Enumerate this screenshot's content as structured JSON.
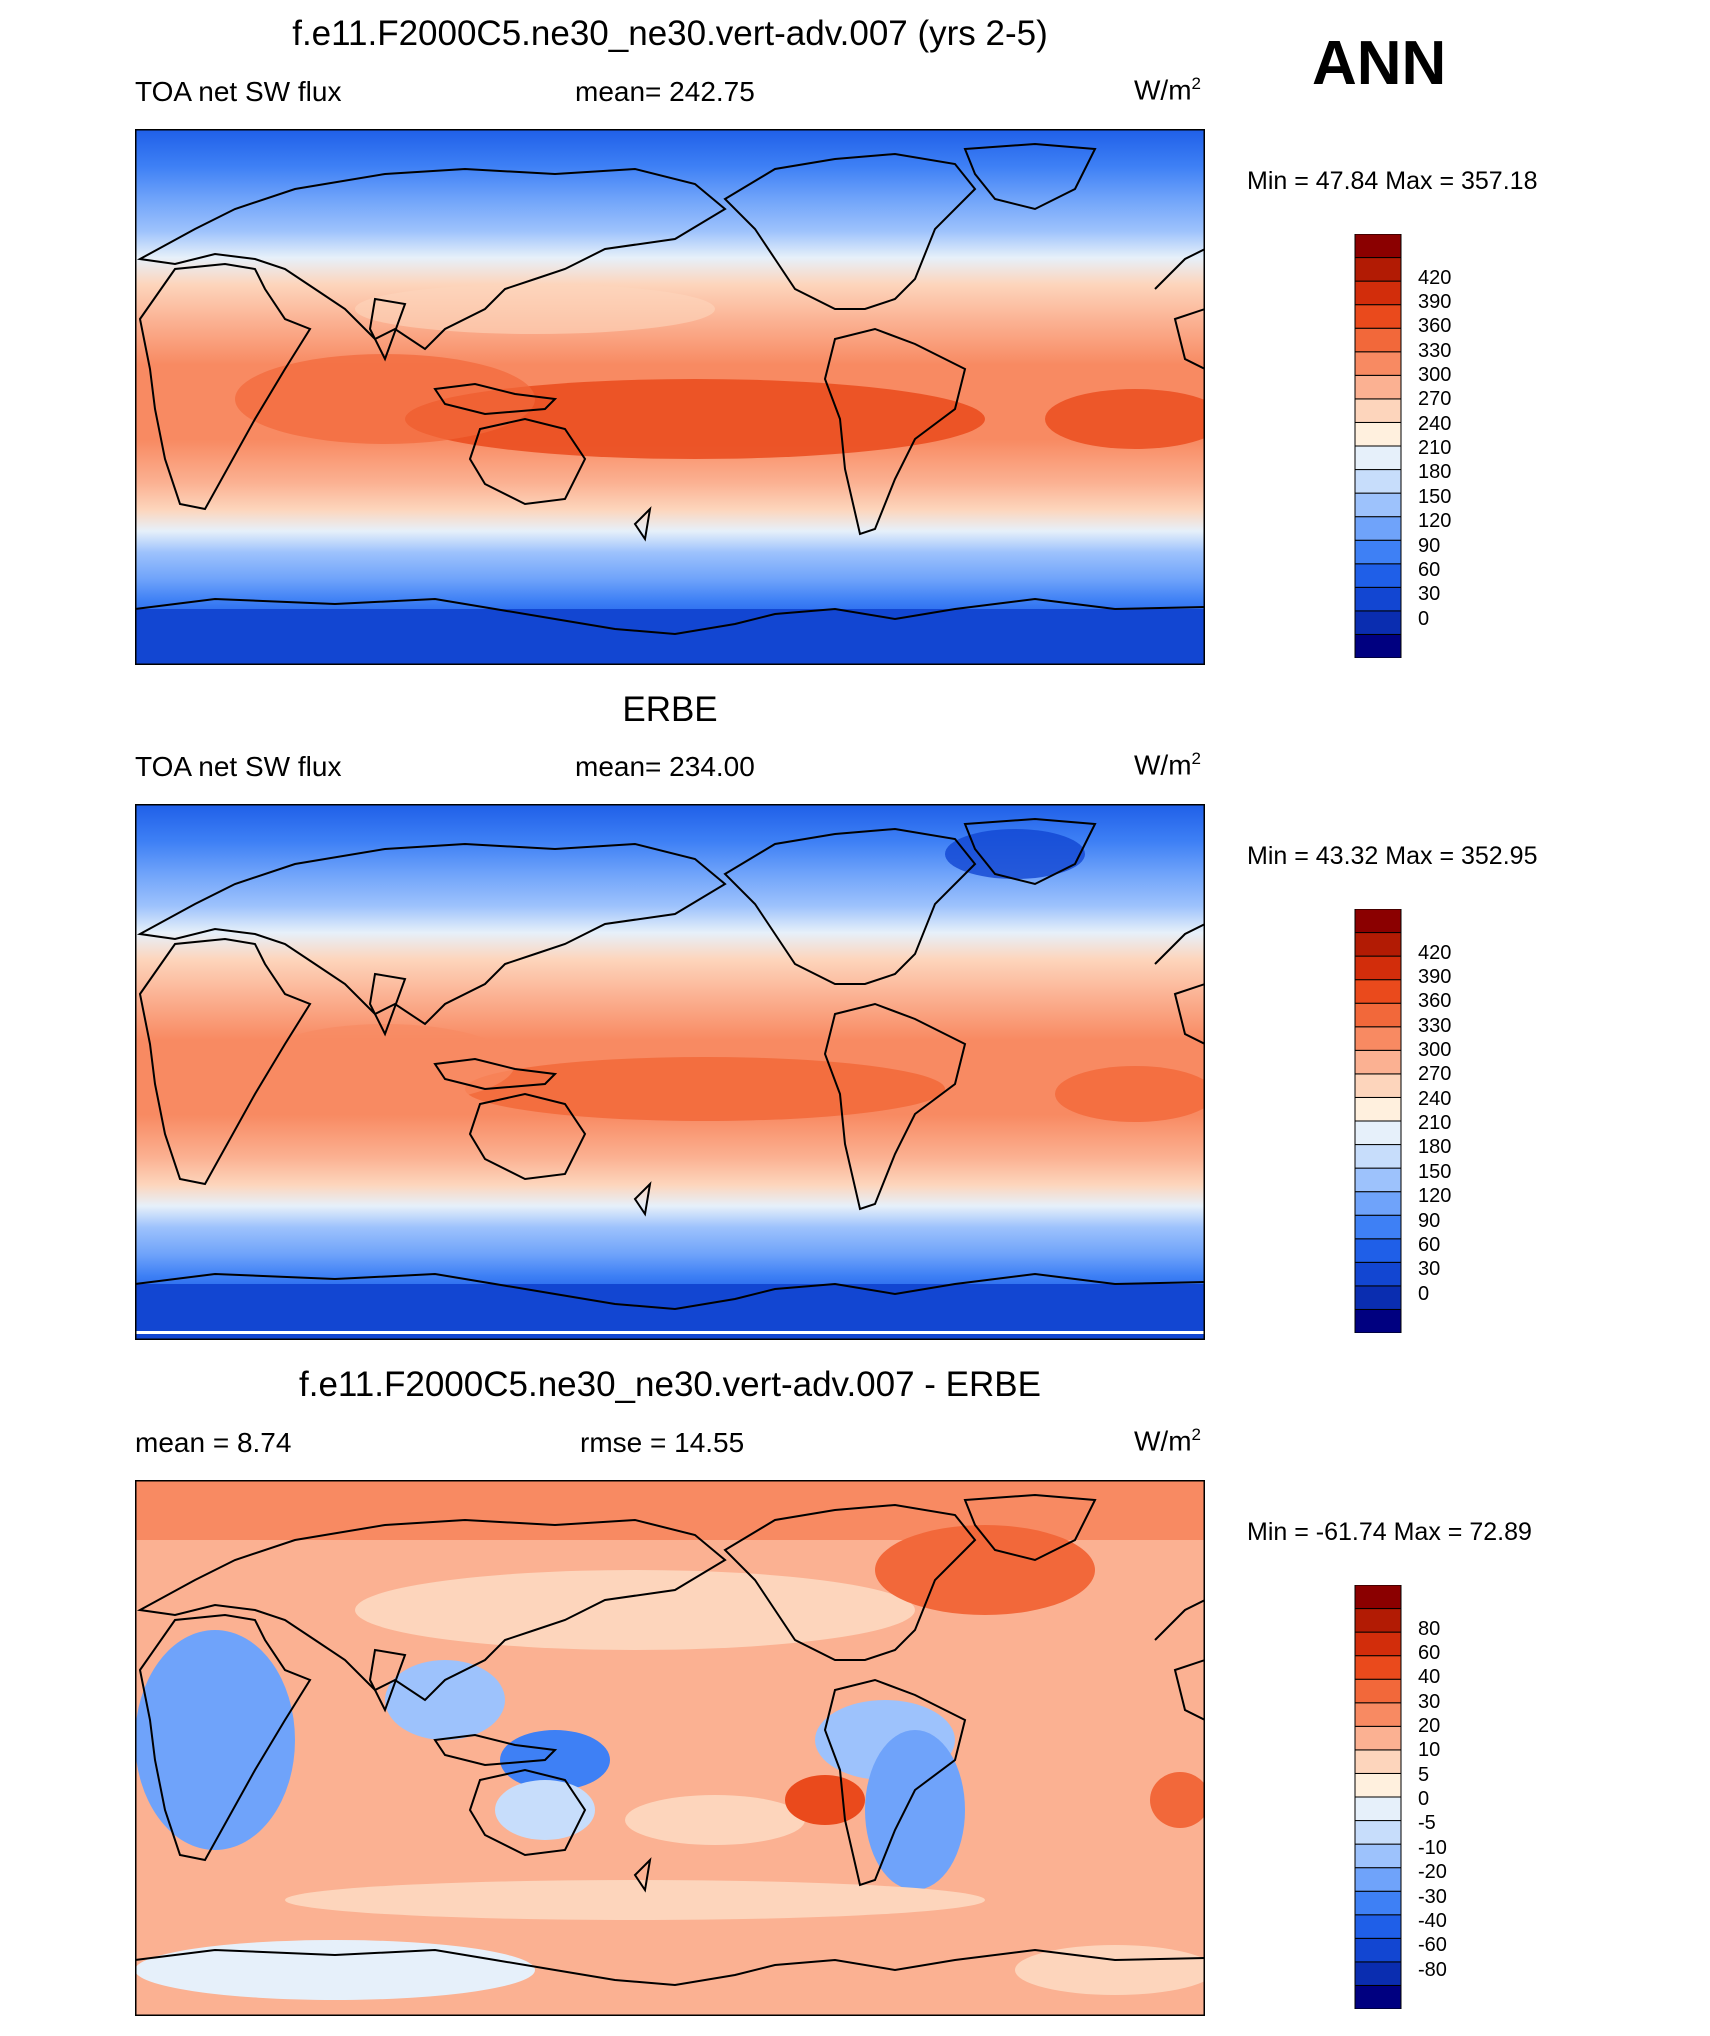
{
  "season": "ANN",
  "colors": {
    "cb1": [
      "#000080",
      "#0A2DB0",
      "#1246D2",
      "#1F5FE8",
      "#3E80F5",
      "#6FA3FA",
      "#9DC2FC",
      "#C7DDFB",
      "#E6F0FA",
      "#FFF0DE",
      "#FDD5BC",
      "#FBB192",
      "#F88A62",
      "#F2683A",
      "#EA4A1C",
      "#D22D0B",
      "#B21B04",
      "#8B0000"
    ],
    "cb2": [
      "#000080",
      "#0A2DB0",
      "#1246D2",
      "#1F5FE8",
      "#3E80F5",
      "#6FA3FA",
      "#9DC2FC",
      "#C7DDFB",
      "#E6F0FA",
      "#FFF0DE",
      "#FDD5BC",
      "#FBB192",
      "#F88A62",
      "#F2683A",
      "#EA4A1C",
      "#D22D0B",
      "#B21B04",
      "#8B0000"
    ],
    "cb3": [
      "#000080",
      "#0A2DB0",
      "#1246D2",
      "#1F5FE8",
      "#3E80F5",
      "#6FA3FA",
      "#9DC2FC",
      "#C7DDFB",
      "#E6F0FA",
      "#FFF0DE",
      "#FDD5BC",
      "#FBB192",
      "#F88A62",
      "#F2683A",
      "#EA4A1C",
      "#D22D0B",
      "#B21B04",
      "#8B0000"
    ]
  },
  "panels": [
    {
      "title": "f.e11.F2000C5.ne30_ne30.vert-adv.007 (yrs 2-5)",
      "left": "TOA net SW flux",
      "center": "mean= 242.75",
      "units": "W/m",
      "units_sup": "2",
      "minmax": "Min =  47.84 Max = 357.18",
      "levels": [
        "420",
        "390",
        "360",
        "330",
        "300",
        "270",
        "240",
        "210",
        "180",
        "150",
        "120",
        "90",
        "60",
        "30",
        "0"
      ]
    },
    {
      "title": "ERBE",
      "left": "TOA net SW flux",
      "center": "mean= 234.00",
      "units": "W/m",
      "units_sup": "2",
      "minmax": "Min =  43.32 Max = 352.95",
      "levels": [
        "420",
        "390",
        "360",
        "330",
        "300",
        "270",
        "240",
        "210",
        "180",
        "150",
        "120",
        "90",
        "60",
        "30",
        "0"
      ]
    },
    {
      "title": "f.e11.F2000C5.ne30_ne30.vert-adv.007 - ERBE",
      "left": "mean =   8.74",
      "center": "rmse =  14.55",
      "units": "W/m",
      "units_sup": "2",
      "minmax": "Min = -61.74 Max =  72.89",
      "levels": [
        "80",
        "60",
        "40",
        "30",
        "20",
        "10",
        "5",
        "0",
        "-5",
        "-10",
        "-20",
        "-30",
        "-40",
        "-60",
        "-80"
      ]
    }
  ]
}
